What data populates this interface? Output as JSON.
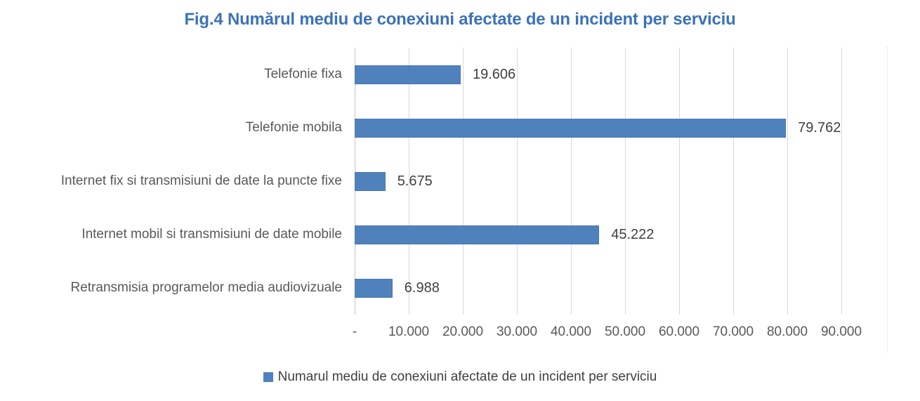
{
  "chart_data": {
    "type": "bar",
    "orientation": "horizontal",
    "title": "Fig.4 Numărul mediu de conexiuni afectate de un incident per serviciu",
    "legend_entries": [
      "Numarul mediu de conexiuni afectate de un incident per serviciu"
    ],
    "legend_position": "bottom",
    "categories": [
      "Telefonie fixa",
      "Telefonie mobila",
      "Internet fix si transmisiuni de date la puncte fixe",
      "Internet mobil si transmisiuni de date mobile",
      "Retransmisia programelor media audiovizuale"
    ],
    "values": [
      19606,
      79762,
      5675,
      45222,
      6988
    ],
    "value_labels": [
      "19.606",
      "79.762",
      "5.675",
      "45.222",
      "6.988"
    ],
    "x_tick_values": [
      0,
      10000,
      20000,
      30000,
      40000,
      50000,
      60000,
      70000,
      80000,
      90000
    ],
    "x_tick_labels": [
      "-",
      "10.000",
      "20.000",
      "30.000",
      "40.000",
      "50.000",
      "60.000",
      "70.000",
      "80.000",
      "90.000"
    ],
    "xlim": [
      0,
      98500
    ],
    "grid": "vertical-only",
    "colors": {
      "bar": "#4F81BD",
      "title": "#3C72B8",
      "category_label": "#595959",
      "value_label": "#404040",
      "tick_label": "#595959",
      "gridline": "#D9D9D9",
      "axis_line": "#C3C3C3"
    }
  }
}
